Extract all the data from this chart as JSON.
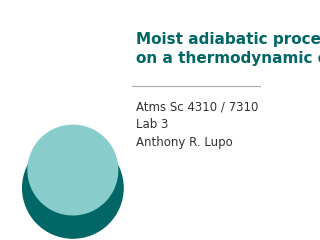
{
  "title_line1": "Moist adiabatic processes",
  "title_line2": "on a thermodynamic chart.",
  "title_color": "#006666",
  "body_line1": "Atms Sc 4310 / 7310",
  "body_line2": "Lab 3",
  "body_line3": "Anthony R. Lupo",
  "body_color": "#333333",
  "background_color": "#ffffff",
  "separator_color": "#aaaaaa",
  "circle_color_dark": "#006666",
  "circle_color_light": "#88cccc",
  "title_fontsize": 11,
  "body_fontsize": 8.5
}
